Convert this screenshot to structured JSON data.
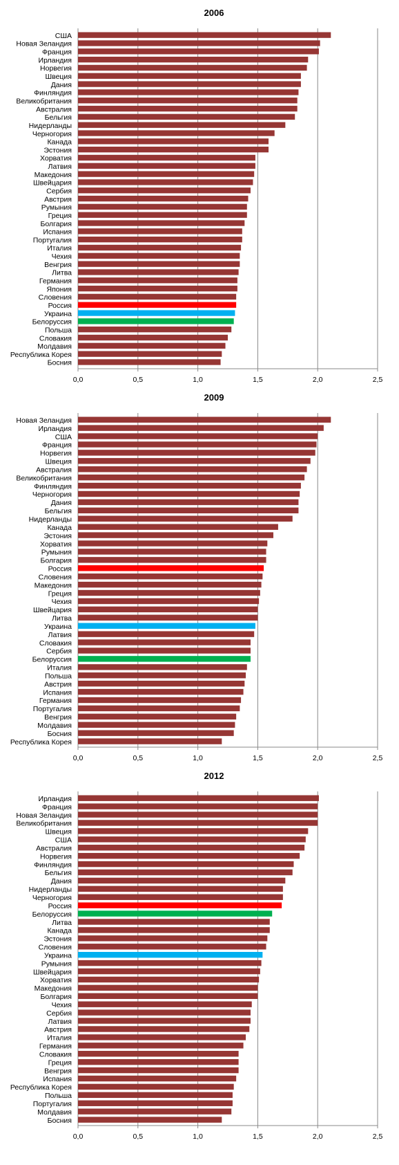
{
  "colors": {
    "bar": "#963634",
    "russia": "#ff0000",
    "ukraine": "#00b0f0",
    "belarus": "#00b050",
    "grid": "#888888",
    "axis": "#000000",
    "text": "#000000"
  },
  "chart_data": [
    {
      "type": "bar",
      "orientation": "horizontal",
      "title": "2006",
      "xlim": [
        0,
        2.5
      ],
      "xticks": [
        "0,0",
        "0,5",
        "1,0",
        "1,5",
        "2,0",
        "2,5"
      ],
      "grid": true,
      "legend": "none",
      "categories": [
        "США",
        "Новая Зеландия",
        "Франция",
        "Ирландия",
        "Норвегия",
        "Швеция",
        "Дания",
        "Финляндия",
        "Великобритания",
        "Австралия",
        "Бельгия",
        "Нидерланды",
        "Черногория",
        "Канада",
        "Эстония",
        "Хорватия",
        "Латвия",
        "Македония",
        "Швейцария",
        "Сербия",
        "Австрия",
        "Румыния",
        "Греция",
        "Болгария",
        "Испания",
        "Португалия",
        "Италия",
        "Чехия",
        "Венгрия",
        "Литва",
        "Германия",
        "Япония",
        "Словения",
        "Россия",
        "Украина",
        "Белоруссия",
        "Польша",
        "Словакия",
        "Молдавия",
        "Республика Корея",
        "Босния"
      ],
      "values": [
        2.11,
        2.02,
        2.01,
        1.92,
        1.91,
        1.86,
        1.86,
        1.84,
        1.83,
        1.83,
        1.81,
        1.73,
        1.64,
        1.59,
        1.59,
        1.48,
        1.48,
        1.47,
        1.46,
        1.44,
        1.42,
        1.41,
        1.41,
        1.39,
        1.37,
        1.37,
        1.36,
        1.35,
        1.35,
        1.34,
        1.33,
        1.33,
        1.32,
        1.32,
        1.31,
        1.3,
        1.28,
        1.25,
        1.23,
        1.2,
        1.19
      ]
    },
    {
      "type": "bar",
      "orientation": "horizontal",
      "title": "2009",
      "xlim": [
        0,
        2.5
      ],
      "xticks": [
        "0,0",
        "0,5",
        "1,0",
        "1,5",
        "2,0",
        "2,5"
      ],
      "grid": true,
      "legend": "none",
      "categories": [
        "Новая Зеландия",
        "Ирландия",
        "США",
        "Франция",
        "Норвегия",
        "Швеция",
        "Австралия",
        "Великобритания",
        "Финляндия",
        "Черногория",
        "Дания",
        "Бельгия",
        "Нидерланды",
        "Канада",
        "Эстония",
        "Хорватия",
        "Румыния",
        "Болгария",
        "Россия",
        "Словения",
        "Македония",
        "Греция",
        "Чехия",
        "Швейцария",
        "Литва",
        "Украина",
        "Латвия",
        "Словакия",
        "Сербия",
        "Белоруссия",
        "Италия",
        "Польша",
        "Австрия",
        "Испания",
        "Германия",
        "Португалия",
        "Венгрия",
        "Молдавия",
        "Босния",
        "Республика Корея"
      ],
      "values": [
        2.11,
        2.05,
        2.0,
        1.99,
        1.98,
        1.94,
        1.91,
        1.89,
        1.86,
        1.85,
        1.84,
        1.84,
        1.79,
        1.67,
        1.63,
        1.58,
        1.57,
        1.57,
        1.55,
        1.54,
        1.53,
        1.52,
        1.51,
        1.5,
        1.5,
        1.48,
        1.47,
        1.44,
        1.44,
        1.44,
        1.41,
        1.4,
        1.39,
        1.38,
        1.36,
        1.35,
        1.32,
        1.31,
        1.3,
        1.2
      ]
    },
    {
      "type": "bar",
      "orientation": "horizontal",
      "title": "2012",
      "xlim": [
        0,
        2.5
      ],
      "xticks": [
        "0,0",
        "0,5",
        "1,0",
        "1,5",
        "2,0",
        "2,5"
      ],
      "grid": true,
      "legend": "none",
      "categories": [
        "Ирландия",
        "Франция",
        "Новая Зеландия",
        "Великобритания",
        "Швеция",
        "США",
        "Австралия",
        "Норвегия",
        "Финляндия",
        "Бельгия",
        "Дания",
        "Нидерланды",
        "Черногория",
        "Россия",
        "Белоруссия",
        "Литва",
        "Канада",
        "Эстония",
        "Словения",
        "Украина",
        "Румыния",
        "Швейцария",
        "Хорватия",
        "Македония",
        "Болгария",
        "Чехия",
        "Сербия",
        "Латвия",
        "Австрия",
        "Италия",
        "Германия",
        "Словакия",
        "Греция",
        "Венгрия",
        "Испания",
        "Республика Корея",
        "Польша",
        "Португалия",
        "Молдавия",
        "Босния"
      ],
      "values": [
        2.01,
        2.0,
        2.0,
        2.0,
        1.92,
        1.9,
        1.89,
        1.85,
        1.8,
        1.79,
        1.73,
        1.71,
        1.71,
        1.7,
        1.62,
        1.6,
        1.6,
        1.58,
        1.57,
        1.54,
        1.53,
        1.52,
        1.51,
        1.5,
        1.5,
        1.45,
        1.44,
        1.44,
        1.43,
        1.4,
        1.38,
        1.34,
        1.34,
        1.34,
        1.32,
        1.3,
        1.29,
        1.29,
        1.28,
        1.2
      ]
    }
  ]
}
